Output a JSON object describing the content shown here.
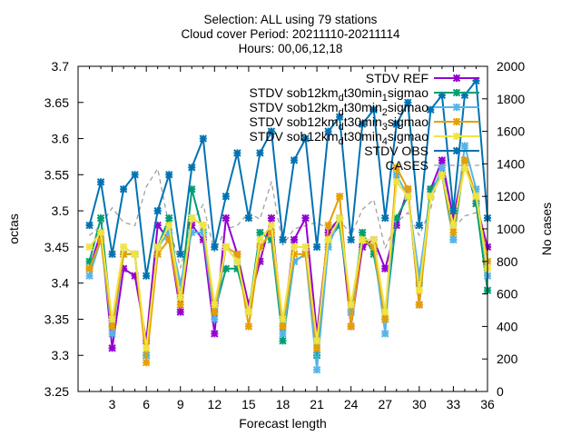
{
  "title_lines": [
    "Selection: ALL using    79 stations",
    "Cloud cover   Period: 20211110-20211114",
    "Hours: 00,06,12,18"
  ],
  "chart_data": {
    "type": "line",
    "xlabel": "Forecast length",
    "ylabel": "octas",
    "y2label": "No cases",
    "xlim": [
      0,
      36
    ],
    "ylim": [
      3.25,
      3.7
    ],
    "y2lim": [
      0,
      2000
    ],
    "grid": "off",
    "legend": "top-right",
    "x_ticks": [
      3,
      6,
      9,
      12,
      15,
      18,
      21,
      24,
      27,
      30,
      33,
      36
    ],
    "y_ticks": [
      3.25,
      3.3,
      3.35,
      3.4,
      3.45,
      3.5,
      3.55,
      3.6,
      3.65,
      3.7
    ],
    "y_tick_labels": [
      "3.25",
      "3.3",
      "3.35",
      "3.4",
      "3.45",
      "3.5",
      "3.55",
      "3.6",
      "3.65",
      "3.7"
    ],
    "y2_ticks": [
      0,
      200,
      400,
      600,
      800,
      1000,
      1200,
      1400,
      1600,
      1800,
      2000
    ],
    "x": [
      1,
      2,
      3,
      4,
      5,
      6,
      7,
      8,
      9,
      10,
      11,
      12,
      13,
      14,
      15,
      16,
      17,
      18,
      19,
      20,
      21,
      22,
      23,
      24,
      25,
      26,
      27,
      28,
      29,
      30,
      31,
      32,
      33,
      34,
      35,
      36
    ],
    "series": [
      {
        "name": "STDV REF",
        "axis": "y1",
        "color": "#9400d3",
        "style": "solid",
        "marker": "x-star",
        "values": [
          3.42,
          3.47,
          3.31,
          3.42,
          3.41,
          3.32,
          3.48,
          3.46,
          3.36,
          3.48,
          3.46,
          3.33,
          3.49,
          3.44,
          3.37,
          3.43,
          3.49,
          3.34,
          3.46,
          3.49,
          3.33,
          3.47,
          3.49,
          3.34,
          3.45,
          3.46,
          3.42,
          3.48,
          3.53,
          3.37,
          3.53,
          3.57,
          3.49,
          3.57,
          3.51,
          3.45
        ]
      },
      {
        "name": "STDV sob12km_dt30min_1sigmao",
        "legend_base": "STDV sob12km",
        "legend_sub": "d",
        "legend_mid": "t30min",
        "legend_sub2": "1",
        "legend_end": "sigmao",
        "axis": "y1",
        "color": "#009e73",
        "style": "solid",
        "marker": "x-star",
        "values": [
          3.43,
          3.49,
          3.34,
          3.44,
          3.44,
          3.3,
          3.45,
          3.49,
          3.38,
          3.53,
          3.47,
          3.36,
          3.42,
          3.42,
          3.36,
          3.47,
          3.46,
          3.32,
          3.43,
          3.44,
          3.3,
          3.46,
          3.48,
          3.36,
          3.47,
          3.44,
          3.35,
          3.49,
          3.52,
          3.4,
          3.53,
          3.55,
          3.46,
          3.57,
          3.51,
          3.39
        ]
      },
      {
        "name": "STDV sob12km_dt30min_2sigmao",
        "legend_base": "STDV sob12km",
        "legend_sub": "d",
        "legend_mid": "t30min",
        "legend_sub2": "2",
        "legend_end": "sigmao",
        "axis": "y1",
        "color": "#56b4e9",
        "style": "solid",
        "marker": "x-star",
        "values": [
          3.41,
          3.46,
          3.33,
          3.44,
          3.44,
          3.3,
          3.45,
          3.47,
          3.4,
          3.47,
          3.47,
          3.35,
          3.45,
          3.43,
          3.36,
          3.45,
          3.47,
          3.33,
          3.43,
          3.44,
          3.28,
          3.45,
          3.49,
          3.36,
          3.46,
          3.45,
          3.33,
          3.55,
          3.52,
          3.41,
          3.52,
          3.56,
          3.46,
          3.59,
          3.53,
          3.41
        ]
      },
      {
        "name": "STDV sob12km_dt30min_3sigmao",
        "legend_base": "STDV sob12km",
        "legend_sub": "d",
        "legend_mid": "t30min",
        "legend_sub2": "3",
        "legend_end": "sigmao",
        "axis": "y1",
        "color": "#e69f00",
        "style": "solid",
        "marker": "x-star",
        "values": [
          3.42,
          3.46,
          3.34,
          3.44,
          3.44,
          3.29,
          3.44,
          3.46,
          3.37,
          3.49,
          3.48,
          3.36,
          3.45,
          3.44,
          3.34,
          3.45,
          3.47,
          3.34,
          3.44,
          3.44,
          3.31,
          3.48,
          3.52,
          3.34,
          3.46,
          3.45,
          3.35,
          3.56,
          3.53,
          3.37,
          3.52,
          3.55,
          3.47,
          3.57,
          3.52,
          3.43
        ]
      },
      {
        "name": "STDV sob12km_dt30min_4sigmao",
        "legend_base": "STDV sob12km",
        "legend_sub": "d",
        "legend_mid": "t30min",
        "legend_sub2": "4",
        "legend_end": "sigmao",
        "axis": "y1",
        "color": "#f0e442",
        "style": "solid",
        "marker": "x-star",
        "values": [
          3.45,
          3.47,
          3.35,
          3.45,
          3.44,
          3.31,
          3.45,
          3.48,
          3.38,
          3.49,
          3.48,
          3.37,
          3.45,
          3.43,
          3.36,
          3.46,
          3.48,
          3.35,
          3.45,
          3.45,
          3.32,
          3.46,
          3.49,
          3.37,
          3.46,
          3.46,
          3.36,
          3.54,
          3.52,
          3.39,
          3.52,
          3.55,
          3.48,
          3.56,
          3.52,
          3.42
        ]
      },
      {
        "name": "STDV OBS",
        "axis": "y1",
        "color": "#0072b2",
        "style": "solid",
        "marker": "x-star",
        "values": [
          3.48,
          3.54,
          3.44,
          3.53,
          3.55,
          3.41,
          3.5,
          3.55,
          3.44,
          3.56,
          3.6,
          3.45,
          3.52,
          3.58,
          3.49,
          3.58,
          3.61,
          3.46,
          3.57,
          3.6,
          3.45,
          3.61,
          3.63,
          3.46,
          3.62,
          3.64,
          3.49,
          3.62,
          3.65,
          3.48,
          3.64,
          3.66,
          3.5,
          3.66,
          3.68,
          3.49
        ]
      },
      {
        "name": "CASES",
        "axis": "y2",
        "color": "#a0a0a0",
        "style": "dashed",
        "marker": "none",
        "values": [
          960,
          1020,
          1130,
          1040,
          1020,
          1260,
          1370,
          1020,
          760,
          1040,
          1150,
          860,
          1000,
          1020,
          1100,
          1060,
          1290,
          900,
          1000,
          1020,
          1040,
          1000,
          1060,
          960,
          1120,
          1180,
          880,
          1040,
          1100,
          960,
          1120,
          1430,
          1000,
          1080,
          1100,
          820
        ]
      }
    ]
  }
}
